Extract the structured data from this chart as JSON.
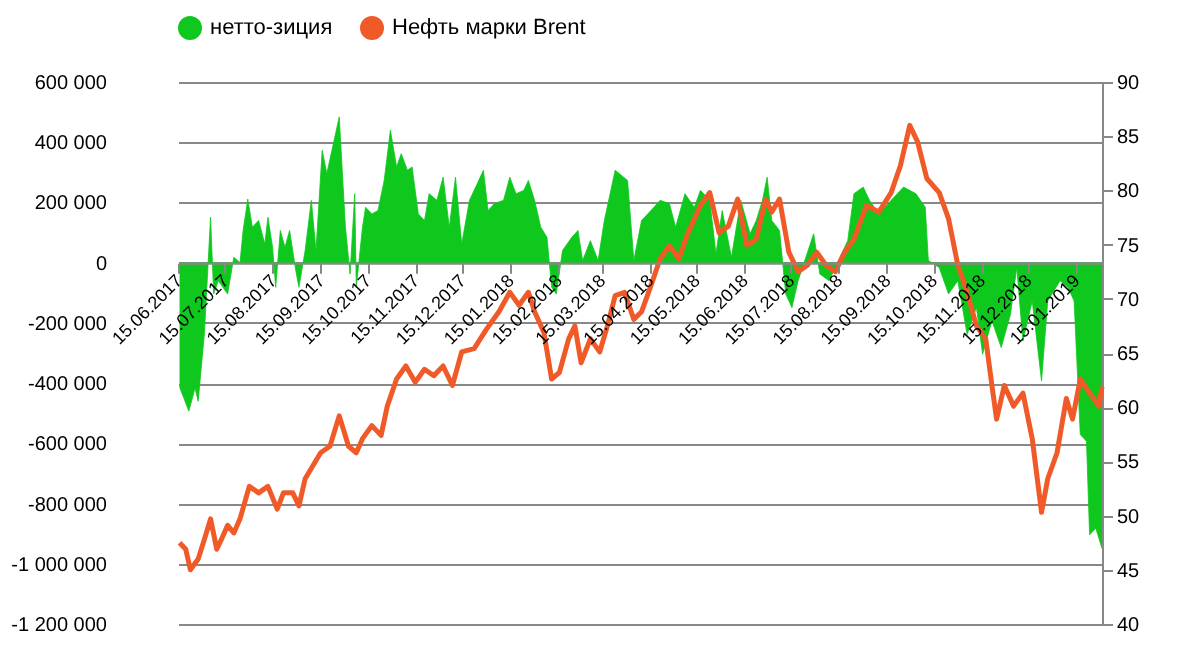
{
  "chart_data": {
    "type": "area",
    "legend": "top",
    "grid": "y",
    "xlim": [
      "2017-06-15",
      "2019-02-01"
    ],
    "xticks": [
      {
        "value": "2017-06-15",
        "label": "15.06.2017"
      },
      {
        "value": "2017-07-15",
        "label": "15.07.2017"
      },
      {
        "value": "2017-08-15",
        "label": "15.08.2017"
      },
      {
        "value": "2017-09-15",
        "label": "15.09.2017"
      },
      {
        "value": "2017-10-15",
        "label": "15.10.2017"
      },
      {
        "value": "2017-11-15",
        "label": "15.11.2017"
      },
      {
        "value": "2017-12-15",
        "label": "15.12.2017"
      },
      {
        "value": "2018-01-15",
        "label": "15.01.2018"
      },
      {
        "value": "2018-02-15",
        "label": "15.02.2018"
      },
      {
        "value": "2018-03-15",
        "label": "15.03.2018"
      },
      {
        "value": "2018-04-15",
        "label": "15.04.2018"
      },
      {
        "value": "2018-05-15",
        "label": "15.05.2018"
      },
      {
        "value": "2018-06-15",
        "label": "15.06.2018"
      },
      {
        "value": "2018-07-15",
        "label": "15.07.2018"
      },
      {
        "value": "2018-08-15",
        "label": "15.08.2018"
      },
      {
        "value": "2018-09-15",
        "label": "15.09.2018"
      },
      {
        "value": "2018-10-15",
        "label": "15.10.2018"
      },
      {
        "value": "2018-11-15",
        "label": "15.11.2018"
      },
      {
        "value": "2018-12-15",
        "label": "15.12.2018"
      },
      {
        "value": "2019-01-15",
        "label": "15.01.2019"
      }
    ],
    "ylim": [
      -1200000,
      600000
    ],
    "yticks": [
      {
        "value": -1200000,
        "label": "-1 200 000"
      },
      {
        "value": -1000000,
        "label": "-1 000 000"
      },
      {
        "value": -800000,
        "label": "-800 000"
      },
      {
        "value": -600000,
        "label": "-600 000"
      },
      {
        "value": -400000,
        "label": "-400 000"
      },
      {
        "value": -200000,
        "label": "-200 000"
      },
      0,
      {
        "value": 200000,
        "label": "200 000"
      },
      {
        "value": 400000,
        "label": "400 000"
      },
      {
        "value": 600000,
        "label": "600 000"
      }
    ],
    "y2lim": [
      40,
      90
    ],
    "y2ticks": [
      40,
      45,
      50,
      55,
      60,
      65,
      70,
      75,
      80,
      85,
      90
    ],
    "series": [
      {
        "name": "нетто-зиция",
        "color": "#0ec81e",
        "x": [
          "2017-06-16",
          "2017-06-22",
          "2017-06-26",
          "2017-06-28",
          "2017-07-02",
          "2017-07-06",
          "2017-07-08",
          "2017-07-11",
          "2017-07-17",
          "2017-07-21",
          "2017-07-25",
          "2017-07-27",
          "2017-07-30",
          "2017-08-02",
          "2017-08-06",
          "2017-08-10",
          "2017-08-12",
          "2017-08-15",
          "2017-08-17",
          "2017-08-20",
          "2017-08-23",
          "2017-08-26",
          "2017-08-30",
          "2017-09-01",
          "2017-09-05",
          "2017-09-09",
          "2017-09-12",
          "2017-09-16",
          "2017-09-19",
          "2017-09-27",
          "2017-10-01",
          "2017-10-04",
          "2017-10-07",
          "2017-10-08",
          "2017-10-12",
          "2017-10-14",
          "2017-10-18",
          "2017-10-22",
          "2017-10-26",
          "2017-10-30",
          "2017-11-03",
          "2017-11-06",
          "2017-11-10",
          "2017-11-13",
          "2017-11-17",
          "2017-11-21",
          "2017-11-24",
          "2017-11-29",
          "2017-12-03",
          "2017-12-07",
          "2017-12-11",
          "2017-12-15",
          "2017-12-20",
          "2017-12-25",
          "2017-12-29",
          "2018-01-01",
          "2018-01-05",
          "2018-01-11",
          "2018-01-15",
          "2018-01-19",
          "2018-01-24",
          "2018-01-27",
          "2018-01-31",
          "2018-02-04",
          "2018-02-08",
          "2018-02-11",
          "2018-02-14",
          "2018-02-18",
          "2018-02-24",
          "2018-02-28",
          "2018-03-03",
          "2018-03-08",
          "2018-03-13",
          "2018-03-17",
          "2018-03-24",
          "2018-04-01",
          "2018-04-05",
          "2018-04-10",
          "2018-04-18",
          "2018-04-22",
          "2018-04-28",
          "2018-05-02",
          "2018-05-08",
          "2018-05-14",
          "2018-05-18",
          "2018-05-24",
          "2018-05-28",
          "2018-06-01",
          "2018-06-07",
          "2018-06-13",
          "2018-06-19",
          "2018-06-23",
          "2018-06-27",
          "2018-06-30",
          "2018-07-03",
          "2018-07-08",
          "2018-07-12",
          "2018-07-16",
          "2018-07-20",
          "2018-07-30",
          "2018-08-03",
          "2018-08-09",
          "2018-08-15",
          "2018-08-21",
          "2018-08-25",
          "2018-08-31",
          "2018-09-04",
          "2018-09-10",
          "2018-09-18",
          "2018-09-26",
          "2018-10-04",
          "2018-10-10",
          "2018-10-12",
          "2018-10-19",
          "2018-10-25",
          "2018-10-31",
          "2018-11-06",
          "2018-11-12",
          "2018-11-16",
          "2018-11-22",
          "2018-11-28",
          "2018-12-04",
          "2018-12-08",
          "2018-12-12",
          "2018-12-18",
          "2018-12-24",
          "2018-12-28",
          "2019-01-05",
          "2019-01-10",
          "2019-01-14",
          "2019-01-18",
          "2019-01-22",
          "2019-01-24",
          "2019-01-28",
          "2019-02-01"
        ],
        "values": [
          -413000,
          -493000,
          -416000,
          -460000,
          -238000,
          151000,
          -104000,
          -60000,
          -104000,
          18000,
          0,
          107000,
          211000,
          118000,
          140000,
          62000,
          151000,
          51000,
          -82000,
          107000,
          51000,
          107000,
          -27000,
          -82000,
          40000,
          207000,
          40000,
          373000,
          296000,
          484000,
          118000,
          -38000,
          229000,
          -82000,
          118000,
          184000,
          162000,
          173000,
          273000,
          440000,
          318000,
          362000,
          307000,
          318000,
          162000,
          140000,
          229000,
          207000,
          284000,
          118000,
          284000,
          62000,
          207000,
          262000,
          307000,
          173000,
          196000,
          207000,
          284000,
          229000,
          240000,
          273000,
          207000,
          118000,
          84000,
          -82000,
          -104000,
          40000,
          84000,
          107000,
          7000,
          73000,
          7000,
          140000,
          307000,
          273000,
          7000,
          140000,
          184000,
          207000,
          196000,
          118000,
          229000,
          184000,
          240000,
          207000,
          29000,
          173000,
          18000,
          207000,
          96000,
          140000,
          207000,
          284000,
          140000,
          107000,
          -104000,
          -149000,
          -60000,
          96000,
          -38000,
          -60000,
          7000,
          73000,
          229000,
          251000,
          207000,
          162000,
          207000,
          251000,
          229000,
          184000,
          7000,
          -16000,
          -104000,
          -60000,
          -238000,
          -149000,
          -304000,
          -193000,
          -282000,
          -171000,
          -16000,
          -260000,
          -127000,
          -393000,
          -127000,
          -60000,
          -82000,
          -127000,
          -571000,
          -593000,
          -904000,
          -882000,
          -949000
        ]
      },
      {
        "name": "Нефть марки Brent",
        "type": "line",
        "axis": "y2",
        "color": "#f05a28",
        "x": [
          "2017-06-16",
          "2017-06-20",
          "2017-06-23",
          "2017-06-28",
          "2017-07-02",
          "2017-07-06",
          "2017-07-10",
          "2017-07-13",
          "2017-07-17",
          "2017-07-21",
          "2017-07-25",
          "2017-07-31",
          "2017-08-06",
          "2017-08-12",
          "2017-08-18",
          "2017-08-22",
          "2017-08-28",
          "2017-09-01",
          "2017-09-05",
          "2017-09-10",
          "2017-09-15",
          "2017-09-21",
          "2017-09-27",
          "2017-10-03",
          "2017-10-08",
          "2017-10-12",
          "2017-10-18",
          "2017-10-24",
          "2017-10-28",
          "2017-11-03",
          "2017-11-09",
          "2017-11-15",
          "2017-11-21",
          "2017-11-27",
          "2017-12-03",
          "2017-12-09",
          "2017-12-15",
          "2017-12-23",
          "2017-12-31",
          "2018-01-08",
          "2018-01-15",
          "2018-01-21",
          "2018-01-27",
          "2018-01-31",
          "2018-02-06",
          "2018-02-11",
          "2018-02-16",
          "2018-02-22",
          "2018-02-26",
          "2018-03-02",
          "2018-03-08",
          "2018-03-14",
          "2018-03-19",
          "2018-03-24",
          "2018-03-30",
          "2018-04-05",
          "2018-04-10",
          "2018-04-16",
          "2018-04-22",
          "2018-04-28",
          "2018-05-04",
          "2018-05-10",
          "2018-05-18",
          "2018-05-24",
          "2018-05-30",
          "2018-06-05",
          "2018-06-11",
          "2018-06-17",
          "2018-06-23",
          "2018-06-29",
          "2018-07-03",
          "2018-07-08",
          "2018-07-14",
          "2018-07-20",
          "2018-07-26",
          "2018-08-01",
          "2018-08-07",
          "2018-08-13",
          "2018-08-19",
          "2018-08-25",
          "2018-09-02",
          "2018-09-10",
          "2018-09-18",
          "2018-09-24",
          "2018-09-30",
          "2018-10-05",
          "2018-10-11",
          "2018-10-19",
          "2018-10-25",
          "2018-10-31",
          "2018-11-06",
          "2018-11-12",
          "2018-11-18",
          "2018-11-22",
          "2018-11-25",
          "2018-11-30",
          "2018-12-06",
          "2018-12-12",
          "2018-12-18",
          "2018-12-24",
          "2018-12-28",
          "2019-01-03",
          "2019-01-09",
          "2019-01-13",
          "2019-01-18",
          "2019-01-24",
          "2019-01-30",
          "2019-02-01"
        ],
        "values": [
          47.5,
          46.9,
          45.0,
          46.0,
          47.8,
          49.7,
          46.9,
          47.8,
          49.1,
          48.4,
          49.7,
          52.7,
          52.1,
          52.7,
          50.6,
          52.1,
          52.1,
          50.9,
          53.4,
          54.6,
          55.8,
          56.4,
          59.2,
          56.4,
          55.8,
          57.1,
          58.3,
          57.4,
          60.1,
          62.6,
          63.8,
          62.3,
          63.5,
          62.9,
          63.8,
          62.0,
          65.1,
          65.4,
          67.2,
          68.8,
          70.6,
          69.4,
          70.6,
          68.8,
          66.9,
          62.6,
          63.2,
          66.3,
          67.5,
          64.1,
          66.3,
          65.1,
          67.5,
          70.3,
          70.6,
          68.1,
          68.8,
          71.2,
          73.7,
          74.9,
          73.7,
          76.1,
          78.6,
          79.8,
          76.1,
          76.7,
          79.2,
          74.9,
          75.5,
          79.2,
          78.0,
          79.2,
          74.3,
          72.5,
          73.1,
          74.3,
          73.1,
          72.5,
          74.3,
          75.5,
          78.6,
          78.0,
          79.8,
          82.3,
          86.0,
          84.5,
          81.1,
          79.8,
          77.4,
          73.1,
          70.6,
          67.5,
          66.3,
          62.0,
          58.9,
          62.0,
          60.1,
          61.3,
          57.1,
          50.3,
          53.4,
          55.8,
          60.8,
          58.9,
          62.6,
          61.3,
          60.1,
          61.9
        ]
      }
    ]
  }
}
